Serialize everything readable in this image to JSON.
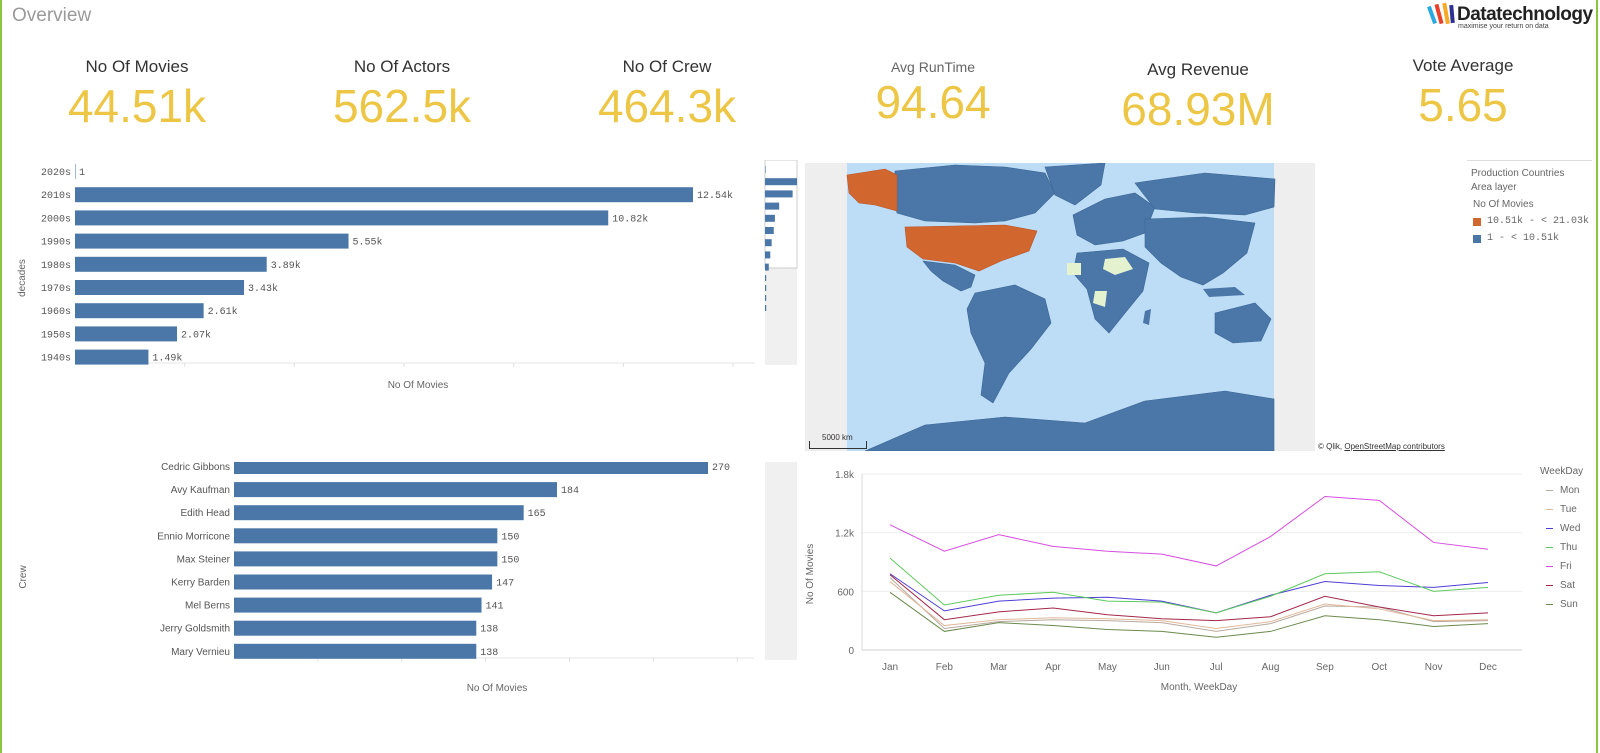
{
  "sheet": {
    "title": "Overview"
  },
  "logo": {
    "name": "Datatechnology",
    "tagline": "maximise your return on data"
  },
  "kpis": [
    {
      "label": "No Of Movies",
      "value": "44.51k"
    },
    {
      "label": "No Of Actors",
      "value": "562.5k"
    },
    {
      "label": "No Of Crew",
      "value": "464.3k"
    },
    {
      "label": "Avg RunTime",
      "value": "94.64"
    },
    {
      "label": "Avg Revenue",
      "value": "68.93M"
    },
    {
      "label": "Vote Average",
      "value": "5.65"
    }
  ],
  "decades_chart": {
    "dimension_label": "decades",
    "chart_data": {
      "type": "bar",
      "orientation": "horizontal",
      "categories": [
        "2020s",
        "2010s",
        "2000s",
        "1990s",
        "1980s",
        "1970s",
        "1960s",
        "1950s",
        "1940s"
      ],
      "values": [
        1,
        12540,
        10820,
        5550,
        3890,
        3430,
        2610,
        2070,
        1490
      ],
      "value_labels": [
        "1",
        "12.54k",
        "10.82k",
        "5.55k",
        "3.89k",
        "3.43k",
        "2.61k",
        "2.07k",
        "1.49k"
      ],
      "xlabel": "No Of Movies",
      "color": "#4a77a8"
    }
  },
  "crew_chart": {
    "dimension_label": "Crew",
    "chart_data": {
      "type": "bar",
      "orientation": "horizontal",
      "categories": [
        "Cedric Gibbons",
        "Avy Kaufman",
        "Edith Head",
        "Ennio Morricone",
        "Max Steiner",
        "Kerry Barden",
        "Mel Berns",
        "Jerry Goldsmith",
        "Mary Vernieu"
      ],
      "values": [
        270,
        184,
        165,
        150,
        150,
        147,
        141,
        138,
        138
      ],
      "value_labels": [
        "270",
        "184",
        "165",
        "150",
        "150",
        "147",
        "141",
        "138",
        "138"
      ],
      "xlabel": "No Of Movies",
      "color": "#4a77a8"
    }
  },
  "map": {
    "legend_title": "Production Countries",
    "legend_layer": "Area layer",
    "legend_measure": "No Of Movies",
    "legend_items": [
      {
        "label": "10.51k - < 21.03k",
        "color": "#d2662f"
      },
      {
        "label": "1 - < 10.51k",
        "color": "#4a77a8"
      }
    ],
    "scale_label": "5000 km",
    "attribution_prefix": "© Qlik, ",
    "attribution_link": "OpenStreetMap contributors",
    "ocean_color": "#bddcf6",
    "land_color": "#4a77a8",
    "highlight_color": "#d2662f"
  },
  "weekday_chart": {
    "chart_data": {
      "type": "line",
      "x": [
        "Jan",
        "Feb",
        "Mar",
        "Apr",
        "May",
        "Jun",
        "Jul",
        "Aug",
        "Sep",
        "Oct",
        "Nov",
        "Dec"
      ],
      "xlabel": "Month, WeekDay",
      "ylabel": "No Of Movies",
      "yticks": [
        "0",
        "600",
        "1.2k",
        "1.8k"
      ],
      "ylim": [
        0,
        1800
      ],
      "legend_title": "WeekDay",
      "series": [
        {
          "name": "Mon",
          "color": "#b8a9a0",
          "values": [
            740,
            220,
            290,
            310,
            300,
            280,
            190,
            270,
            450,
            440,
            290,
            300
          ]
        },
        {
          "name": "Tue",
          "color": "#e0b89a",
          "values": [
            700,
            250,
            310,
            330,
            320,
            300,
            220,
            290,
            470,
            420,
            300,
            310
          ]
        },
        {
          "name": "Wed",
          "color": "#4d3fd6",
          "values": [
            780,
            400,
            500,
            530,
            540,
            500,
            380,
            560,
            700,
            660,
            640,
            690
          ]
        },
        {
          "name": "Thu",
          "color": "#5ec95e",
          "values": [
            940,
            460,
            560,
            590,
            500,
            490,
            380,
            550,
            780,
            800,
            600,
            640
          ]
        },
        {
          "name": "Fri",
          "color": "#d64ee0",
          "values": [
            1280,
            1010,
            1180,
            1060,
            1010,
            980,
            860,
            1160,
            1570,
            1530,
            1100,
            1030
          ]
        },
        {
          "name": "Sat",
          "color": "#a3284a",
          "values": [
            770,
            310,
            390,
            430,
            360,
            320,
            300,
            340,
            550,
            440,
            350,
            380
          ]
        },
        {
          "name": "Sun",
          "color": "#6b8a4e",
          "values": [
            590,
            190,
            280,
            250,
            210,
            190,
            130,
            190,
            350,
            310,
            240,
            270
          ]
        }
      ]
    }
  }
}
